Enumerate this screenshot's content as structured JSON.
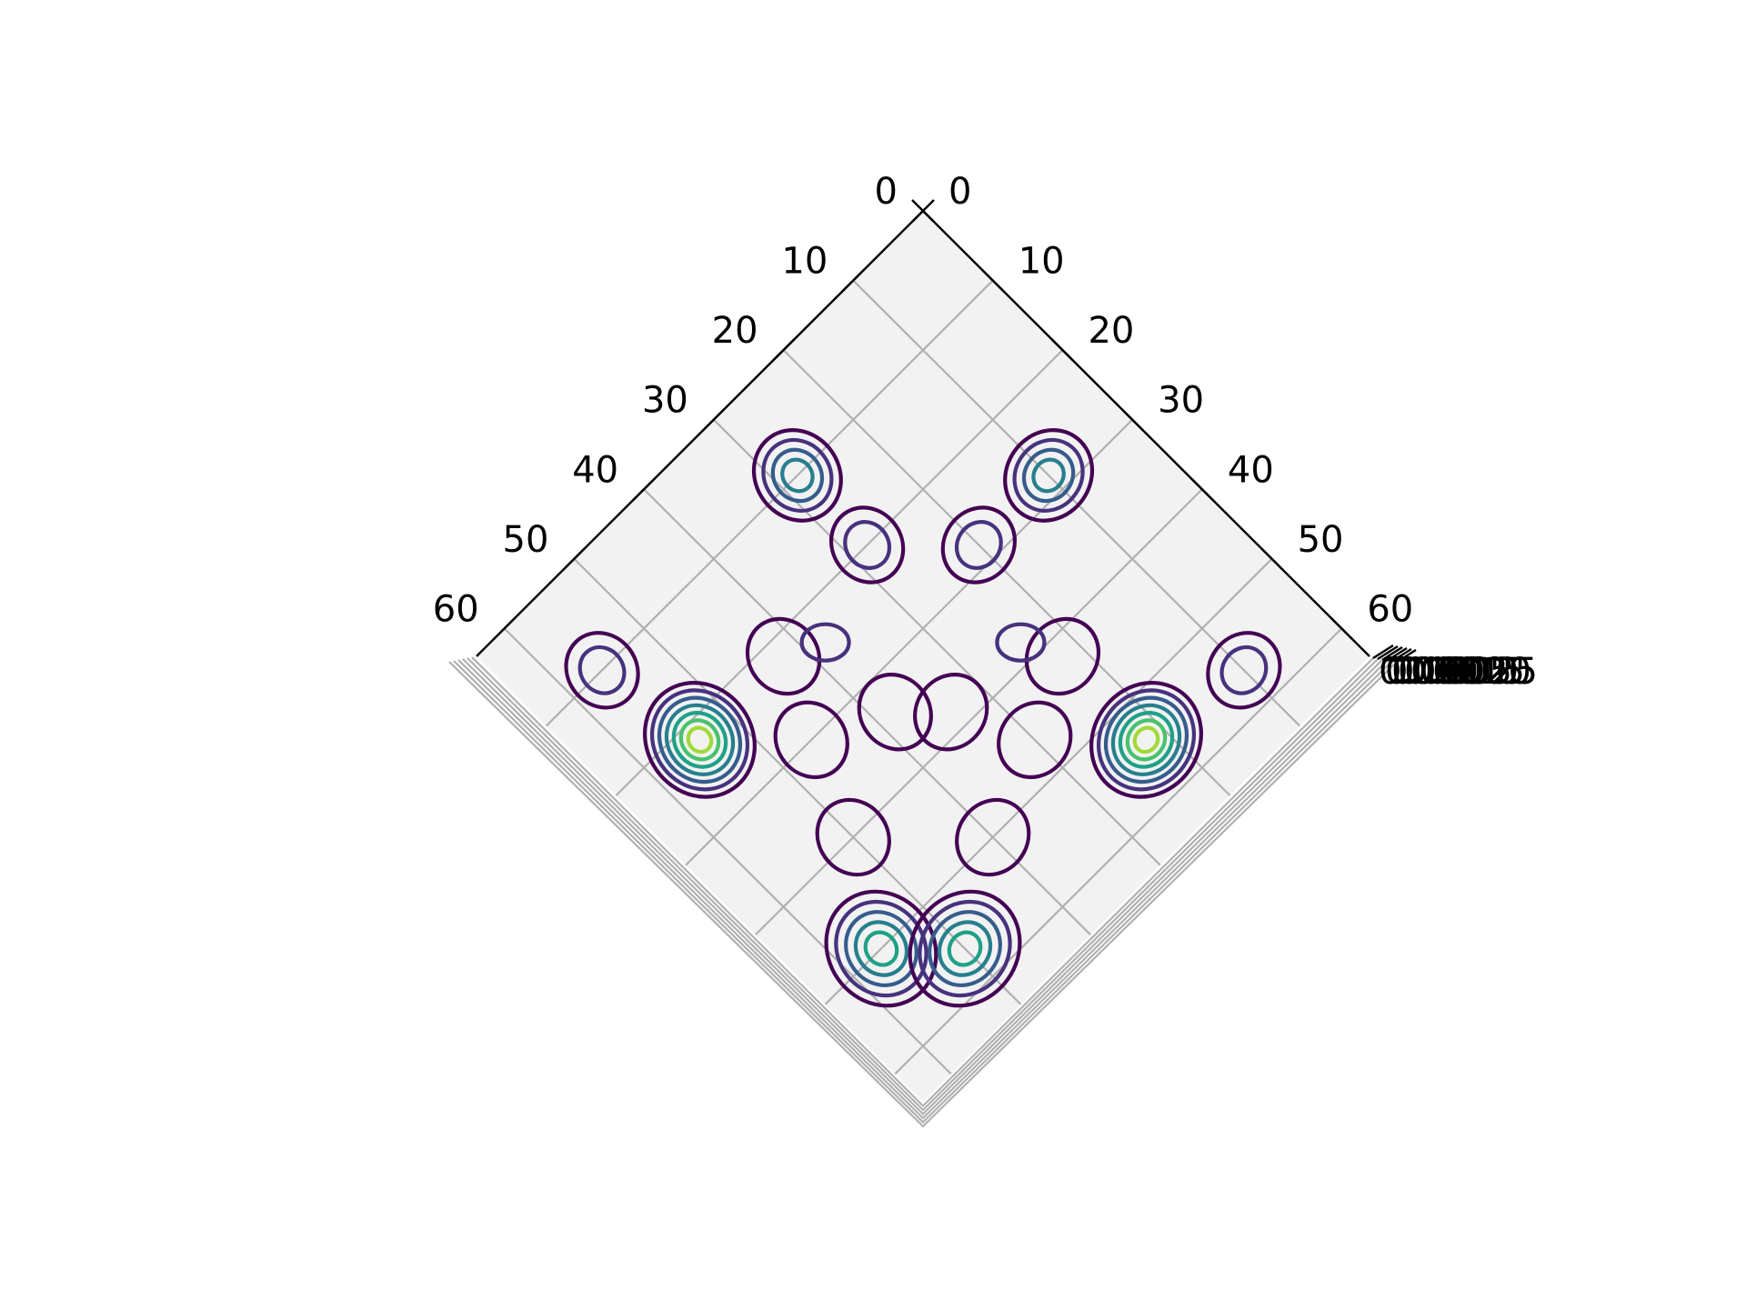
{
  "chart_data": {
    "type": "contour3d",
    "view": "top-down, rotated 45 degrees",
    "title": "",
    "xlabel": "",
    "ylabel": "",
    "zlabel": "",
    "xlim": [
      0,
      64
    ],
    "ylim": [
      0,
      64
    ],
    "x_ticks": [
      "0",
      "10",
      "20",
      "30",
      "40",
      "50",
      "60"
    ],
    "y_ticks": [
      "0",
      "10",
      "20",
      "30",
      "40",
      "50",
      "60"
    ],
    "z_tick_labels": [
      "0.0000",
      "0.0005",
      "0.0010",
      "0.0015",
      "0.0020",
      "0.0025"
    ],
    "grid": true,
    "pane_color": "#f2f2f2",
    "grid_color": "#b0b0b0",
    "colormap": "viridis",
    "level_colors": [
      "#440154",
      "#46327e",
      "#365c8d",
      "#277f8e",
      "#1fa187",
      "#4ac16d",
      "#a0da39",
      "#fde725"
    ],
    "pattern": "symmetric two-dimensional standing-wave probability density: 8 peaks outward, 8 inner lobes",
    "peaks": [
      {
        "x": 10,
        "y": 28,
        "levels": 4
      },
      {
        "x": 28,
        "y": 10,
        "levels": 4
      },
      {
        "x": 10,
        "y": 56,
        "levels": 2
      },
      {
        "x": 56,
        "y": 10,
        "levels": 2
      },
      {
        "x": 22,
        "y": 54,
        "levels": 7
      },
      {
        "x": 54,
        "y": 22,
        "levels": 7
      },
      {
        "x": 50,
        "y": 56,
        "levels": 5
      },
      {
        "x": 56,
        "y": 50,
        "levels": 5
      },
      {
        "x": 20,
        "y": 28,
        "levels": 2
      },
      {
        "x": 28,
        "y": 20,
        "levels": 2
      },
      {
        "x": 22,
        "y": 42,
        "levels": 1
      },
      {
        "x": 42,
        "y": 22,
        "levels": 1
      },
      {
        "x": 34,
        "y": 38,
        "levels": 1
      },
      {
        "x": 38,
        "y": 34,
        "levels": 1
      },
      {
        "x": 30,
        "y": 46,
        "levels": 1
      },
      {
        "x": 46,
        "y": 30,
        "levels": 1
      },
      {
        "x": 50,
        "y": 40,
        "levels": 1
      },
      {
        "x": 40,
        "y": 50,
        "levels": 1
      }
    ],
    "minor_lobes": [
      {
        "x": 24,
        "y": 38
      },
      {
        "x": 38,
        "y": 24
      }
    ]
  }
}
